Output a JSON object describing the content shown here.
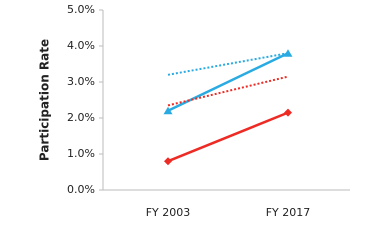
{
  "chart_data": {
    "type": "line",
    "y_label": "Participation Rate",
    "categories": [
      "FY 2003",
      "FY 2017"
    ],
    "ylim": [
      0,
      5
    ],
    "yticks": [
      {
        "value": 0,
        "label": "0.0%"
      },
      {
        "value": 1,
        "label": "1.0%"
      },
      {
        "value": 2,
        "label": "2.0%"
      },
      {
        "value": 3,
        "label": "3.0%"
      },
      {
        "value": 4,
        "label": "4.0%"
      },
      {
        "value": 5,
        "label": "5.0%"
      }
    ],
    "grid": false,
    "series": [
      {
        "color": "#29abe2",
        "values": [
          2.2,
          3.8
        ],
        "dashed": false,
        "marker": "triangle"
      },
      {
        "color": "#ee2a24",
        "values": [
          0.8,
          2.15
        ],
        "dashed": false,
        "marker": "diamond"
      },
      {
        "color": "#29abe2",
        "values": [
          3.2,
          3.8
        ],
        "dashed": true,
        "marker": null
      },
      {
        "color": "#ee2a24",
        "values": [
          2.35,
          3.15
        ],
        "dashed": true,
        "marker": null
      }
    ]
  }
}
